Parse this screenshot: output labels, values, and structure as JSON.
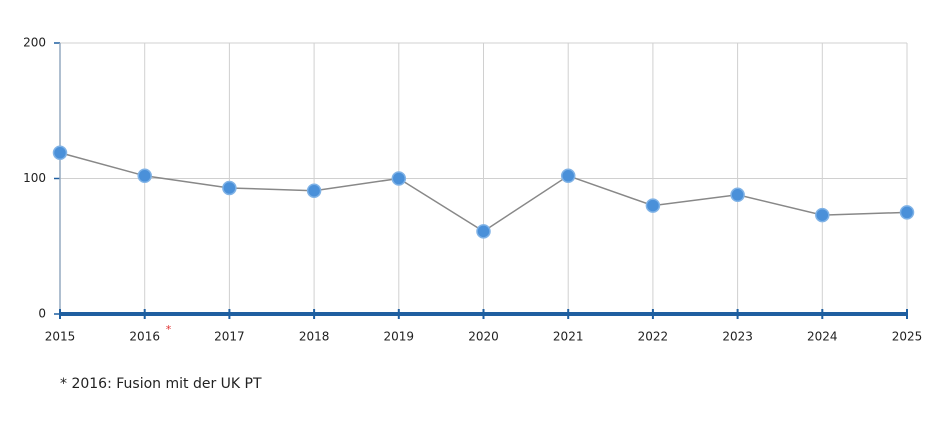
{
  "chart_data": {
    "type": "line",
    "x": [
      2015,
      2016,
      2017,
      2018,
      2019,
      2020,
      2021,
      2022,
      2023,
      2024,
      2025
    ],
    "series": [
      {
        "name": null,
        "color": "#4a90d9",
        "values": [
          119,
          102,
          93,
          91,
          100,
          61,
          102,
          80,
          88,
          73,
          75
        ]
      }
    ],
    "xlim": [
      2015,
      2025
    ],
    "xticks": [
      2015,
      2016,
      2017,
      2018,
      2019,
      2020,
      2021,
      2022,
      2023,
      2024,
      2025
    ],
    "ylim": [
      0,
      200
    ],
    "yticks": [
      0,
      100,
      200
    ],
    "grid": true,
    "annotation": "*",
    "footnote": "* 2016: Fusion mit der UK PT"
  }
}
